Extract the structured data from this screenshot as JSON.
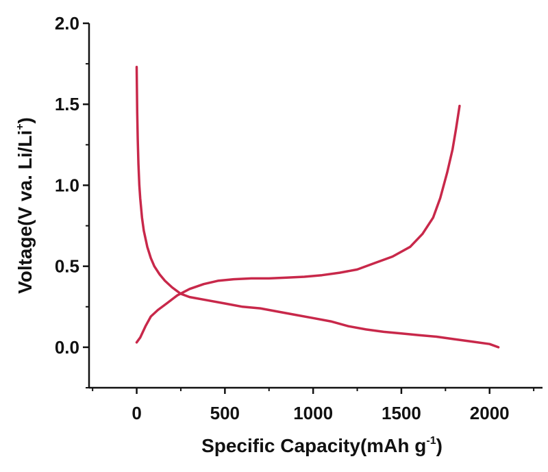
{
  "chart_data": {
    "type": "line",
    "xlabel_main": "Specific Capacity(mAh g",
    "xlabel_sup": "-1",
    "xlabel_end": ")",
    "ylabel_main": "Voltage(V va. Li/Li",
    "ylabel_sup": "+",
    "ylabel_end": ")",
    "xlim": [
      -270,
      2300
    ],
    "ylim": [
      -0.25,
      2.0
    ],
    "x_ticks": [
      0,
      500,
      1000,
      1500,
      2000
    ],
    "x_tick_labels": [
      "0",
      "500",
      "1000",
      "1500",
      "2000"
    ],
    "y_ticks": [
      0.0,
      0.5,
      1.0,
      1.5,
      2.0
    ],
    "y_tick_labels": [
      "0.0",
      "0.5",
      "1.0",
      "1.5",
      "2.0"
    ],
    "grid": false,
    "series": [
      {
        "color": "#c8284a",
        "x": [
          0,
          3,
          6,
          10,
          15,
          20,
          30,
          40,
          60,
          80,
          100,
          130,
          160,
          200,
          250,
          300,
          400,
          500,
          600,
          700,
          800,
          900,
          1000,
          1100,
          1200,
          1300,
          1400,
          1500,
          1600,
          1700,
          1800,
          1900,
          2000,
          2050
        ],
        "y": [
          1.73,
          1.45,
          1.28,
          1.13,
          1.0,
          0.92,
          0.8,
          0.72,
          0.62,
          0.55,
          0.5,
          0.45,
          0.41,
          0.37,
          0.33,
          0.31,
          0.29,
          0.27,
          0.25,
          0.24,
          0.22,
          0.2,
          0.18,
          0.16,
          0.13,
          0.11,
          0.095,
          0.085,
          0.075,
          0.065,
          0.05,
          0.035,
          0.02,
          0.0
        ]
      },
      {
        "color": "#c8284a",
        "x": [
          0,
          20,
          50,
          80,
          120,
          170,
          230,
          300,
          380,
          460,
          550,
          650,
          750,
          850,
          950,
          1050,
          1150,
          1250,
          1350,
          1450,
          1550,
          1620,
          1680,
          1720,
          1760,
          1790,
          1810,
          1830
        ],
        "y": [
          0.03,
          0.06,
          0.13,
          0.19,
          0.23,
          0.27,
          0.32,
          0.36,
          0.39,
          0.41,
          0.42,
          0.425,
          0.425,
          0.43,
          0.435,
          0.445,
          0.46,
          0.48,
          0.52,
          0.56,
          0.62,
          0.7,
          0.8,
          0.92,
          1.08,
          1.22,
          1.35,
          1.49
        ]
      }
    ]
  }
}
